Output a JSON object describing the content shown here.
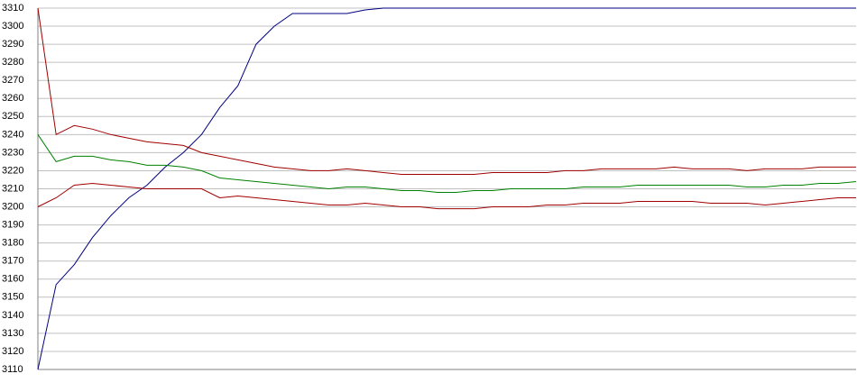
{
  "chart_data": {
    "type": "line",
    "ylim": [
      3110,
      3310
    ],
    "yticks": [
      3110,
      3120,
      3130,
      3140,
      3150,
      3160,
      3170,
      3180,
      3190,
      3200,
      3210,
      3220,
      3230,
      3240,
      3250,
      3260,
      3270,
      3280,
      3290,
      3300,
      3310
    ],
    "grid": true,
    "series": [
      {
        "color": "#000080",
        "values": [
          3110,
          3157,
          3168,
          3183,
          3195,
          3205,
          3212,
          3222,
          3230,
          3240,
          3255,
          3267,
          3290,
          3300,
          3307,
          3307,
          3307,
          3307,
          3309,
          3310,
          3310,
          3310,
          3310,
          3310,
          3310,
          3310,
          3310,
          3310,
          3310,
          3310,
          3310,
          3310,
          3310,
          3310,
          3310,
          3310,
          3310,
          3310,
          3310,
          3310,
          3310,
          3310,
          3310,
          3310,
          3310,
          3310
        ]
      },
      {
        "color": "#a00000",
        "values": [
          3310,
          3240,
          3245,
          3243,
          3240,
          3238,
          3236,
          3235,
          3234,
          3230,
          3228,
          3226,
          3224,
          3222,
          3221,
          3220,
          3220,
          3221,
          3220,
          3219,
          3218,
          3218,
          3218,
          3218,
          3218,
          3219,
          3219,
          3219,
          3219,
          3220,
          3220,
          3221,
          3221,
          3221,
          3221,
          3222,
          3221,
          3221,
          3221,
          3220,
          3221,
          3221,
          3221,
          3222,
          3222,
          3222
        ]
      },
      {
        "color": "#008000",
        "values": [
          3240,
          3225,
          3228,
          3228,
          3226,
          3225,
          3223,
          3223,
          3222,
          3220,
          3216,
          3215,
          3214,
          3213,
          3212,
          3211,
          3210,
          3211,
          3211,
          3210,
          3209,
          3209,
          3208,
          3208,
          3209,
          3209,
          3210,
          3210,
          3210,
          3210,
          3211,
          3211,
          3211,
          3212,
          3212,
          3212,
          3212,
          3212,
          3212,
          3211,
          3211,
          3212,
          3212,
          3213,
          3213,
          3214
        ]
      },
      {
        "color": "#a00000",
        "values": [
          3200,
          3205,
          3212,
          3213,
          3212,
          3211,
          3210,
          3210,
          3210,
          3210,
          3205,
          3206,
          3205,
          3204,
          3203,
          3202,
          3201,
          3201,
          3202,
          3201,
          3200,
          3200,
          3199,
          3199,
          3199,
          3200,
          3200,
          3200,
          3201,
          3201,
          3202,
          3202,
          3202,
          3203,
          3203,
          3203,
          3203,
          3202,
          3202,
          3202,
          3201,
          3202,
          3203,
          3204,
          3205,
          3205
        ]
      }
    ]
  }
}
